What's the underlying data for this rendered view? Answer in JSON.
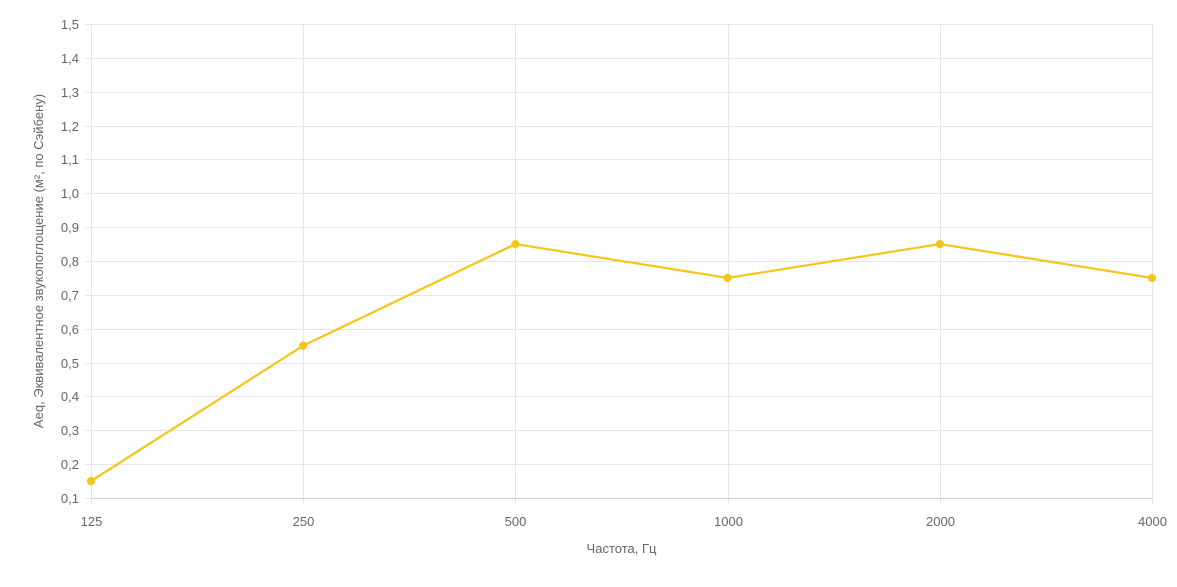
{
  "chart_data": {
    "type": "line",
    "title": "",
    "xlabel": "Частота, Гц",
    "ylabel": "Aeq, Эквивалентное звукопоглощение (м², по Сэйбену)",
    "categories": [
      "125",
      "250",
      "500",
      "1000",
      "2000",
      "4000"
    ],
    "series": [
      {
        "values": [
          0.15,
          0.55,
          0.85,
          0.75,
          0.85,
          0.75
        ],
        "color": "#f5c518"
      }
    ],
    "ylim": [
      0.1,
      1.5
    ],
    "yticks": [
      "0,1",
      "0,2",
      "0,3",
      "0,4",
      "0,5",
      "0,6",
      "0,7",
      "0,8",
      "0,9",
      "1,0",
      "1,1",
      "1,2",
      "1,3",
      "1,4",
      "1,5"
    ],
    "grid": true,
    "legend": "none"
  }
}
